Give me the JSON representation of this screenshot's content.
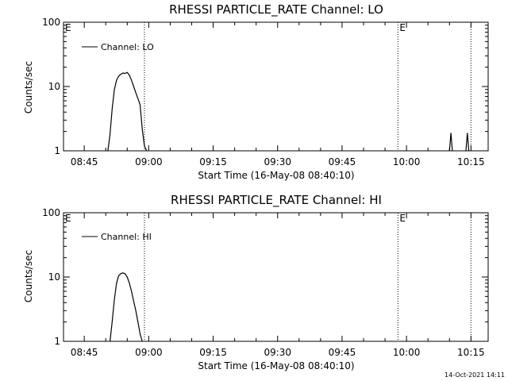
{
  "footer": {
    "timestamp": "14-Oct-2021 14:11"
  },
  "chart_data": [
    {
      "type": "line",
      "title": "RHESSI PARTICLE_RATE Channel: LO",
      "xlabel": "Start Time (16-May-08 08:40:10)",
      "ylabel": "Counts/sec",
      "x_ticks": [
        "08:45",
        "09:00",
        "09:15",
        "09:30",
        "09:45",
        "10:00",
        "10:15"
      ],
      "y_ticks": [
        "1",
        "10",
        "100"
      ],
      "y_scale": "log",
      "xlim": [
        "08:40:10",
        "10:19:00"
      ],
      "ylim": [
        1,
        100
      ],
      "legend": {
        "placement": "top-left",
        "entries": [
          "Channel: LO"
        ]
      },
      "event_markers": [
        {
          "x": "08:59",
          "label": ""
        },
        {
          "x": "09:58",
          "label": "E"
        },
        {
          "x": "10:15",
          "label": ""
        }
      ],
      "edge_marker_label": "E",
      "series": [
        {
          "name": "Channel: LO",
          "x": [
            "08:50:30",
            "08:51:00",
            "08:51:30",
            "08:52:00",
            "08:52:30",
            "08:53:00",
            "08:53:30",
            "08:54:00",
            "08:54:30",
            "08:55:00",
            "08:55:30",
            "08:56:00",
            "08:56:30",
            "08:57:00",
            "08:57:30",
            "08:58:00",
            "08:58:30",
            "08:59:00",
            "08:59:30"
          ],
          "y": [
            1.0,
            1.8,
            4.5,
            9.0,
            12.5,
            14.5,
            15.5,
            16.2,
            16.0,
            16.6,
            15.0,
            12.5,
            10.0,
            8.0,
            6.5,
            5.2,
            2.2,
            1.2,
            1.0
          ]
        },
        {
          "name": "Channel: LO",
          "x": [
            "10:10:00",
            "10:10:20",
            "10:10:40"
          ],
          "y": [
            1.0,
            1.9,
            1.0
          ]
        },
        {
          "name": "Channel: LO",
          "x": [
            "10:13:50",
            "10:14:10",
            "10:14:30"
          ],
          "y": [
            1.0,
            1.9,
            1.0
          ]
        }
      ]
    },
    {
      "type": "line",
      "title": "RHESSI PARTICLE_RATE Channel: HI",
      "xlabel": "Start Time (16-May-08 08:40:10)",
      "ylabel": "Counts/sec",
      "x_ticks": [
        "08:45",
        "09:00",
        "09:15",
        "09:30",
        "09:45",
        "10:00",
        "10:15"
      ],
      "y_ticks": [
        "1",
        "10",
        "100"
      ],
      "y_scale": "log",
      "xlim": [
        "08:40:10",
        "10:19:00"
      ],
      "ylim": [
        1,
        100
      ],
      "legend": {
        "placement": "top-left",
        "entries": [
          "Channel: HI"
        ]
      },
      "event_markers": [
        {
          "x": "08:59",
          "label": ""
        },
        {
          "x": "09:58",
          "label": "E"
        },
        {
          "x": "10:15",
          "label": ""
        }
      ],
      "edge_marker_label": "E",
      "series": [
        {
          "name": "Channel: HI",
          "x": [
            "08:51:00",
            "08:51:30",
            "08:52:00",
            "08:52:30",
            "08:53:00",
            "08:53:30",
            "08:54:00",
            "08:54:30",
            "08:55:00",
            "08:55:30",
            "08:56:00",
            "08:56:30",
            "08:57:00",
            "08:57:30",
            "08:58:00",
            "08:58:30"
          ],
          "y": [
            1.0,
            2.0,
            4.5,
            8.0,
            10.5,
            11.3,
            11.6,
            11.2,
            10.0,
            8.0,
            6.0,
            4.2,
            3.0,
            2.0,
            1.3,
            1.0
          ]
        }
      ]
    }
  ]
}
